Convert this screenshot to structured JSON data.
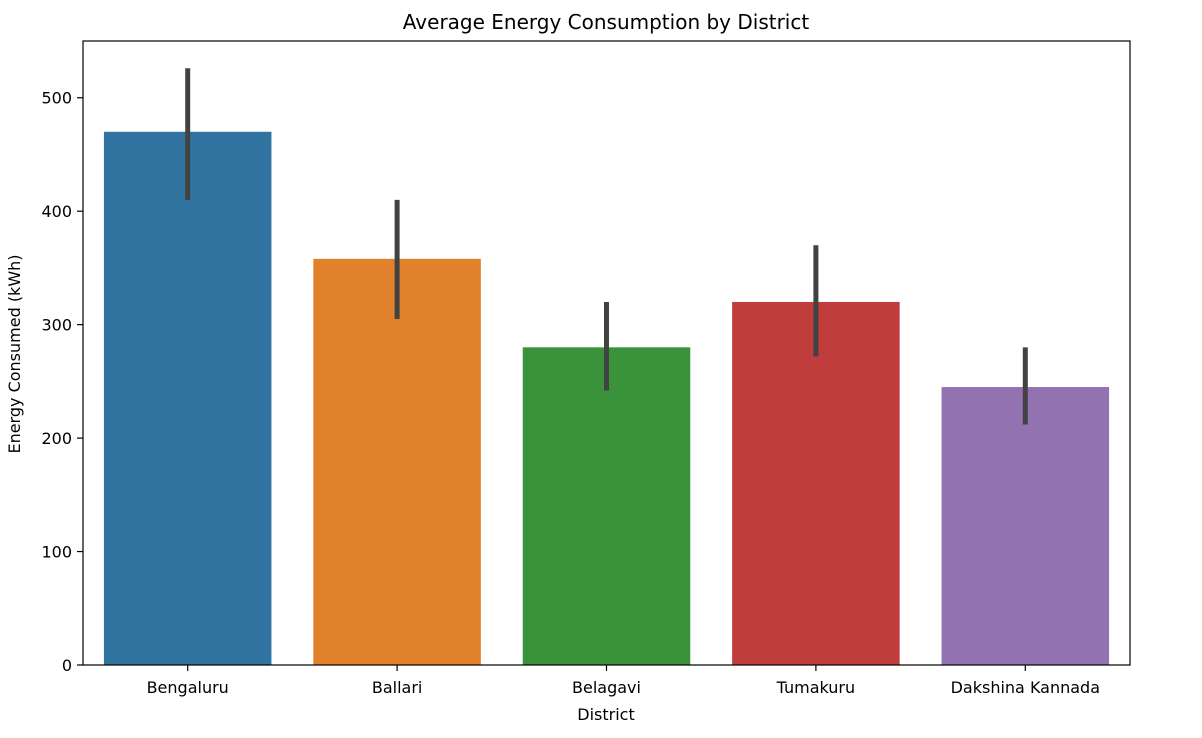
{
  "chart_data": {
    "type": "bar",
    "title": "Average Energy Consumption by District",
    "xlabel": "District",
    "ylabel": "Energy Consumed (kWh)",
    "categories": [
      "Bengaluru",
      "Ballari",
      "Belagavi",
      "Tumakuru",
      "Dakshina Kannada"
    ],
    "values": [
      470,
      358,
      280,
      320,
      245
    ],
    "error_low": [
      410,
      305,
      242,
      272,
      212
    ],
    "error_high": [
      526,
      410,
      320,
      370,
      280
    ],
    "colors": [
      "#3274a1",
      "#e1812c",
      "#3a923a",
      "#c03d3e",
      "#9372b2"
    ],
    "error_color": "#424242",
    "ylim": [
      0,
      550
    ],
    "yticks": [
      0,
      100,
      200,
      300,
      400,
      500
    ],
    "grid": false,
    "legend": "none"
  }
}
